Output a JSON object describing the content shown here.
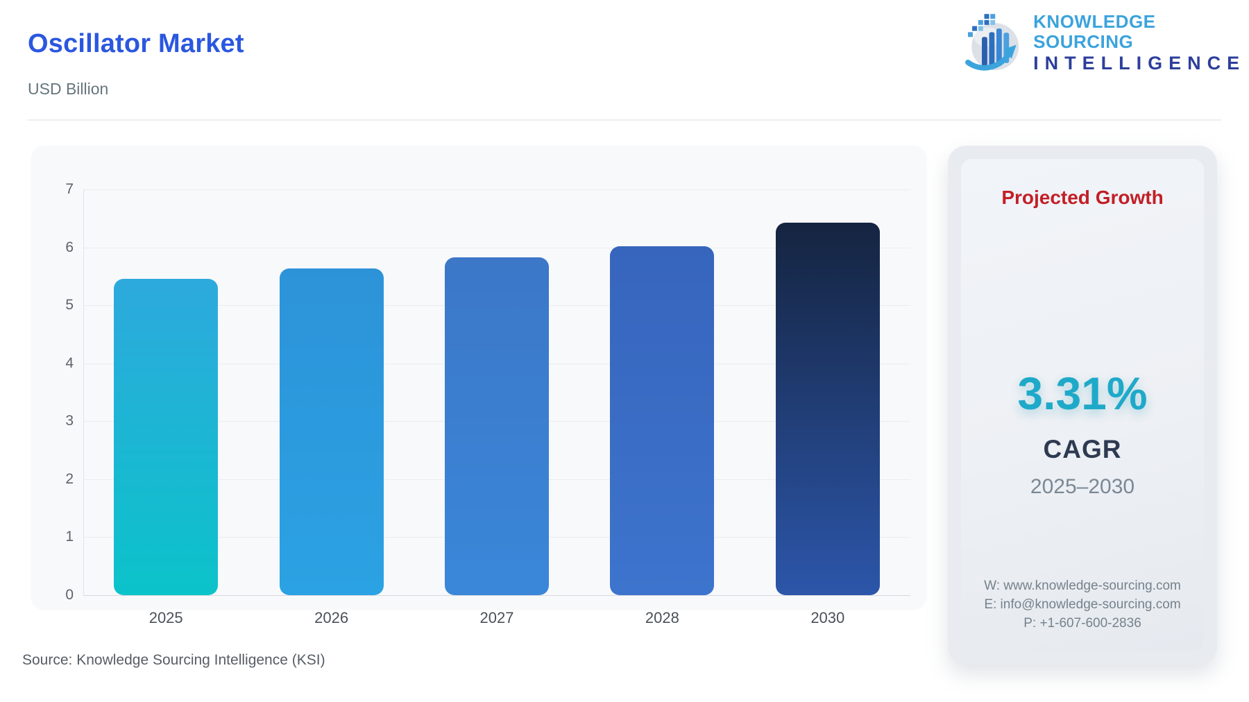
{
  "header": {
    "title": "Oscillator Market",
    "subtitle": "USD Billion"
  },
  "logo": {
    "line1": "KNOWLEDGE SOURCING",
    "line2": "INTELLIGENCE"
  },
  "chart_data": {
    "type": "bar",
    "title": "Oscillator Market",
    "ylabel": "USD Billion",
    "categories": [
      "2025",
      "2026",
      "2027",
      "2028",
      "2030"
    ],
    "values": [
      5.46,
      5.64,
      5.83,
      6.02,
      6.43
    ],
    "ylim": [
      0,
      7
    ],
    "yticks": [
      0,
      1,
      2,
      3,
      4,
      5,
      6,
      7
    ],
    "grid": true,
    "legend": false,
    "bar_gradients": [
      [
        "#2DA9DD",
        "#0BC3CA"
      ],
      [
        "#2D93D9",
        "#2BA2E3"
      ],
      [
        "#3C77C8",
        "#3A87D9"
      ],
      [
        "#3765BD",
        "#3D74CD"
      ],
      [
        "#152440",
        "#2C56AA"
      ]
    ]
  },
  "growth_panel": {
    "title": "Projected Growth",
    "value": "3.31%",
    "label": "CAGR",
    "range": "2025–2030",
    "contact_website": "W: www.knowledge-sourcing.com",
    "contact_email": "E: info@knowledge-sourcing.com",
    "contact_phone": "P: +1-607-600-2836",
    "title_color": "#C21F27",
    "value_color": "#1FA9C9"
  },
  "footer": {
    "source": "Source: Knowledge Sourcing Intelligence (KSI)"
  }
}
